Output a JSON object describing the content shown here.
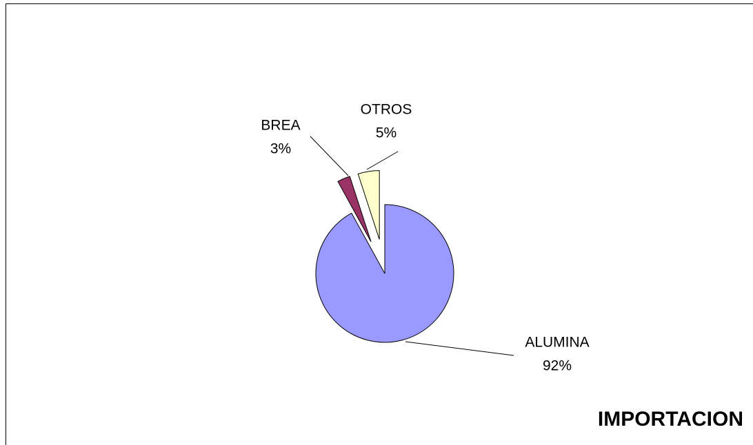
{
  "chart_data": {
    "type": "pie",
    "title": "IMPORTACION",
    "categories": [
      "ALUMINA",
      "BREA",
      "OTROS"
    ],
    "values": [
      92,
      3,
      5
    ],
    "value_labels": [
      "92%",
      "3%",
      "5%"
    ],
    "colors": [
      "#9999ff",
      "#993366",
      "#ffffcc"
    ]
  }
}
